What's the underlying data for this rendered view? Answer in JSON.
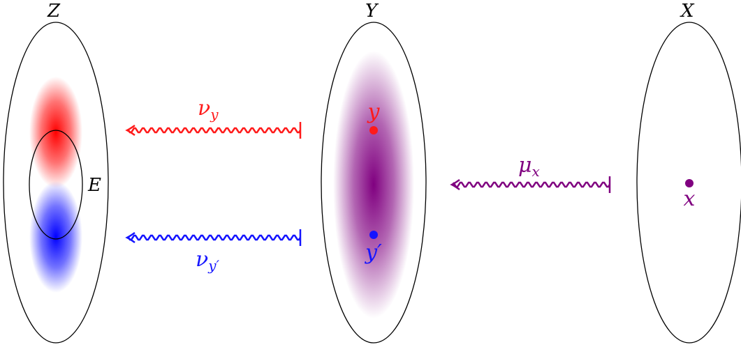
{
  "sets": {
    "z": {
      "name": "Z"
    },
    "y": {
      "name": "Y"
    },
    "x": {
      "name": "X"
    }
  },
  "subset": {
    "name": "E"
  },
  "points": {
    "y": {
      "label": "y"
    },
    "y_prime": {
      "label": "y′"
    },
    "x": {
      "label": "x"
    }
  },
  "arrows": {
    "nu_y": {
      "symbol": "ν",
      "subscript": "y"
    },
    "nu_y_prime": {
      "symbol": "ν",
      "subscript": "y′"
    },
    "mu_x": {
      "symbol": "μ",
      "subscript": "x"
    }
  },
  "colors": {
    "red": "#ff1a1a",
    "blue": "#1414ff",
    "purple": "#800080",
    "black": "#000000"
  }
}
